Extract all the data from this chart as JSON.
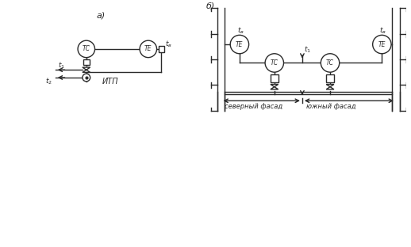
{
  "bg_color": "#ffffff",
  "line_color": "#2a2a2a",
  "label_a": "а)",
  "label_b": "б)",
  "tc_label": "ТС",
  "te_label": "ТЕ",
  "itp_label": "ИТП",
  "north_label": "северный фасад",
  "south_label": "южный фасад"
}
